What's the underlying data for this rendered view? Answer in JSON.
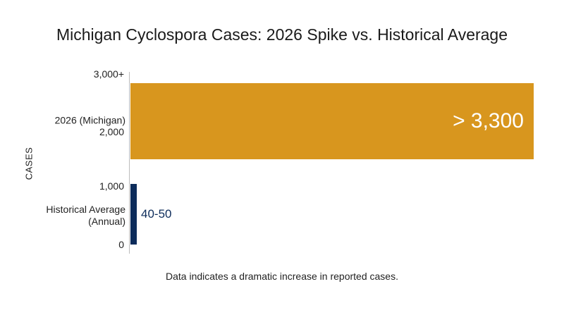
{
  "chart_data": {
    "type": "bar",
    "orientation": "horizontal",
    "title": "Michigan Cyclospora Cases: 2026 Spike vs. Historical Average",
    "ylabel": "CASES",
    "yticks": [
      "3,000+",
      "2,000",
      "1,000",
      "0"
    ],
    "categories": [
      "2026 (Michigan)",
      "Historical Average\n(Annual)"
    ],
    "values": [
      3300,
      50
    ],
    "value_labels": [
      "> 3,300",
      "40-50"
    ],
    "colors": [
      "#D8961E",
      "#0D2C5B"
    ],
    "caption": "Data indicates a dramatic increase in reported cases."
  }
}
